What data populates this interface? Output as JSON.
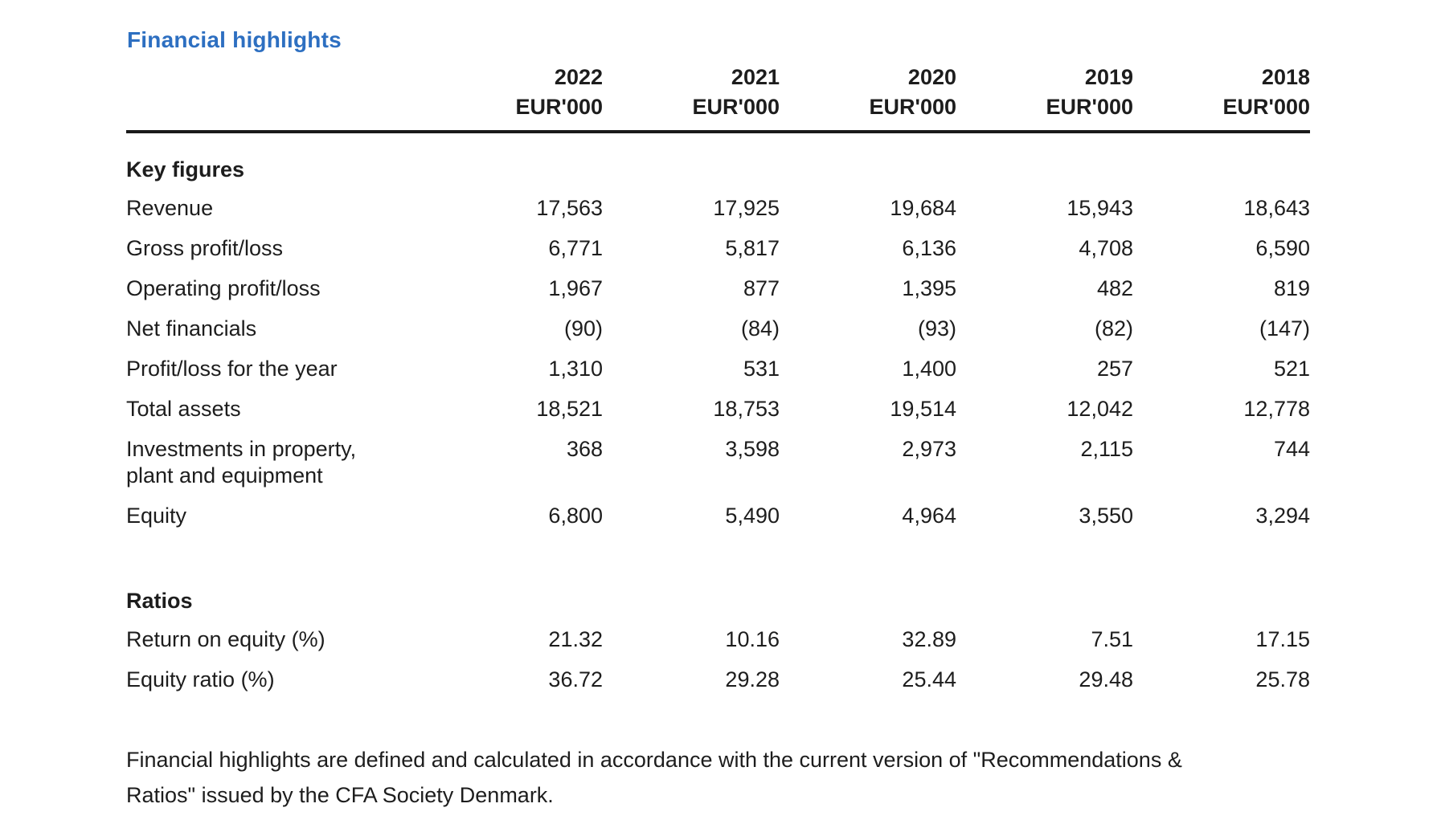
{
  "page": {
    "title": "Financial highlights",
    "title_color": "#2d6fc1",
    "text_color": "#1d1d1d"
  },
  "table": {
    "unit_label": "EUR'000",
    "years": [
      "2022",
      "2021",
      "2020",
      "2019",
      "2018"
    ],
    "sections": [
      {
        "heading": "Key figures",
        "rows": [
          {
            "label": "Revenue",
            "values": [
              "17,563",
              "17,925",
              "19,684",
              "15,943",
              "18,643"
            ]
          },
          {
            "label": "Gross profit/loss",
            "values": [
              "6,771",
              "5,817",
              "6,136",
              "4,708",
              "6,590"
            ]
          },
          {
            "label": "Operating profit/loss",
            "values": [
              "1,967",
              "877",
              "1,395",
              "482",
              "819"
            ]
          },
          {
            "label": "Net financials",
            "values": [
              "(90)",
              "(84)",
              "(93)",
              "(82)",
              "(147)"
            ]
          },
          {
            "label": "Profit/loss for the year",
            "values": [
              "1,310",
              "531",
              "1,400",
              "257",
              "521"
            ]
          },
          {
            "label": "Total assets",
            "values": [
              "18,521",
              "18,753",
              "19,514",
              "12,042",
              "12,778"
            ]
          },
          {
            "label": "Investments in property,",
            "label_line2": "plant and equipment",
            "values": [
              "368",
              "3,598",
              "2,973",
              "2,115",
              "744"
            ]
          },
          {
            "label": "Equity",
            "values": [
              "6,800",
              "5,490",
              "4,964",
              "3,550",
              "3,294"
            ]
          }
        ]
      },
      {
        "heading": "Ratios",
        "rows": [
          {
            "label": "Return on equity (%)",
            "values": [
              "21.32",
              "10.16",
              "32.89",
              "7.51",
              "17.15"
            ]
          },
          {
            "label": "Equity ratio (%)",
            "values": [
              "36.72",
              "29.28",
              "25.44",
              "29.48",
              "25.78"
            ]
          }
        ]
      }
    ]
  },
  "footnote": {
    "lines": [
      "Financial highlights are defined and calculated in accordance with the current version of \"Recommendations &",
      "Ratios\" issued by the CFA Society Denmark."
    ]
  }
}
